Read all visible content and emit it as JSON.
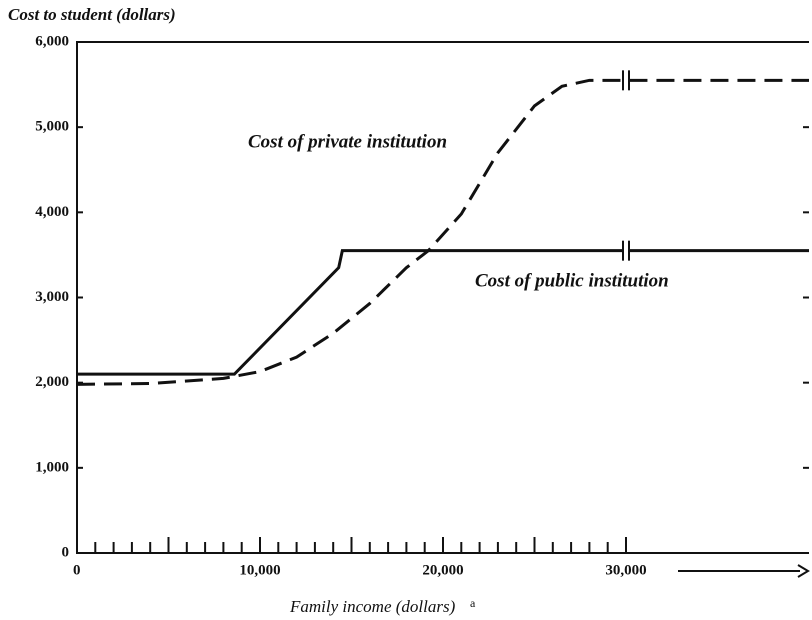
{
  "chart_data": {
    "type": "line",
    "y_label": "Cost to student (dollars)",
    "x_label": "Family income (dollars)",
    "x_label_note": "a",
    "xlim": [
      0,
      40000
    ],
    "ylim": [
      0,
      6000
    ],
    "xticks": [
      0,
      {
        "value": 10000,
        "label": "10,000"
      },
      {
        "value": 20000,
        "label": "20,000"
      },
      {
        "value": 30000,
        "label": "30,000"
      }
    ],
    "yticks": [
      0,
      {
        "value": 1000,
        "label": "1,000"
      },
      {
        "value": 2000,
        "label": "2,000"
      },
      {
        "value": 3000,
        "label": "3,000"
      },
      {
        "value": 4000,
        "label": "4,000"
      },
      {
        "value": 5000,
        "label": "5,000"
      },
      {
        "value": 6000,
        "label": "6,000"
      }
    ],
    "series": [
      {
        "name": "Cost of public institution",
        "color": "#111111",
        "dashed": false,
        "x": [
          0,
          8600,
          14300,
          14500,
          40000
        ],
        "values": [
          2100,
          2100,
          3350,
          3550,
          3550
        ]
      },
      {
        "name": "Cost of private institution",
        "color": "#111111",
        "dashed": true,
        "x": [
          0,
          4000,
          8000,
          10000,
          12000,
          14000,
          16000,
          18000,
          19200,
          21000,
          23000,
          25000,
          26500,
          28000,
          40000
        ],
        "values": [
          1980,
          1990,
          2050,
          2130,
          2300,
          2580,
          2930,
          3350,
          3550,
          3980,
          4700,
          5250,
          5480,
          5550,
          5550
        ]
      }
    ]
  }
}
